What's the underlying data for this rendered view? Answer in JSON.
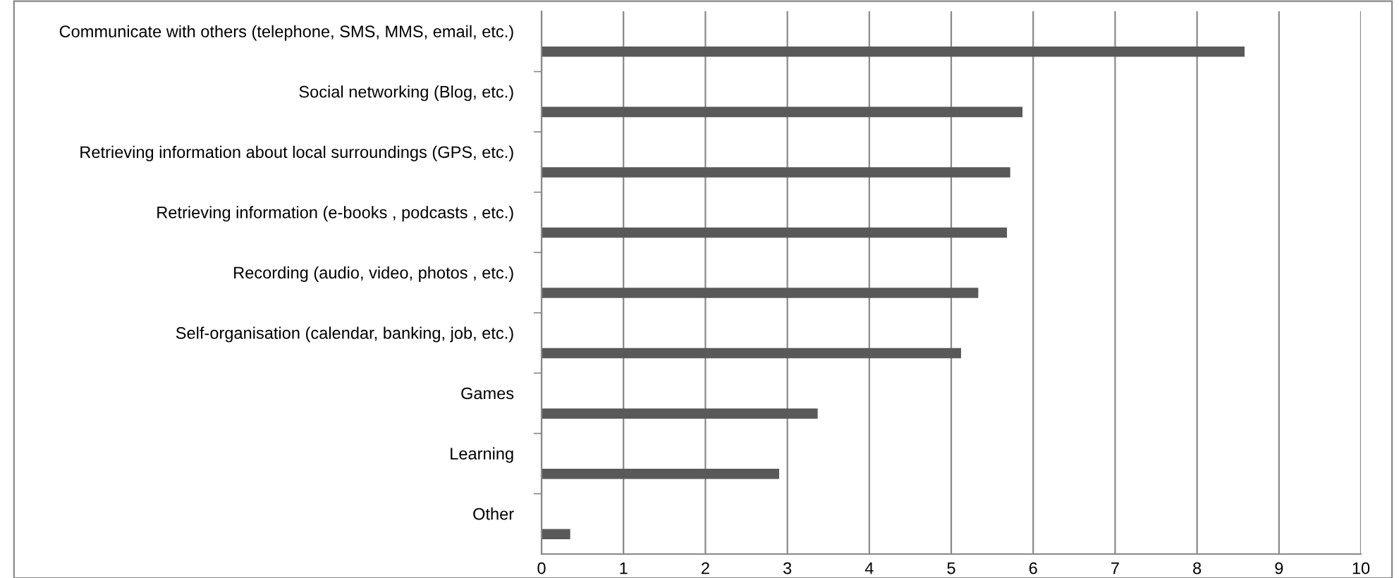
{
  "chart_data": {
    "type": "bar",
    "orientation": "horizontal",
    "categories": [
      "Communicate with others (telephone, SMS, MMS, email, etc.)",
      "Social networking (Blog, etc.)",
      "Retrieving information about local surroundings (GPS, etc.)",
      "Retrieving information (e-books , podcasts , etc.)",
      "Recording (audio, video, photos , etc.)",
      "Self-organisation (calendar, banking, job, etc.)",
      "Games",
      "Learning",
      "Other"
    ],
    "values": [
      8.58,
      5.87,
      5.72,
      5.68,
      5.33,
      5.12,
      3.37,
      2.9,
      0.35
    ],
    "color": "#595959",
    "xlim": [
      0,
      10
    ],
    "xticks": [
      0,
      1,
      2,
      3,
      4,
      5,
      6,
      7,
      8,
      9,
      10
    ],
    "grid": "x"
  }
}
